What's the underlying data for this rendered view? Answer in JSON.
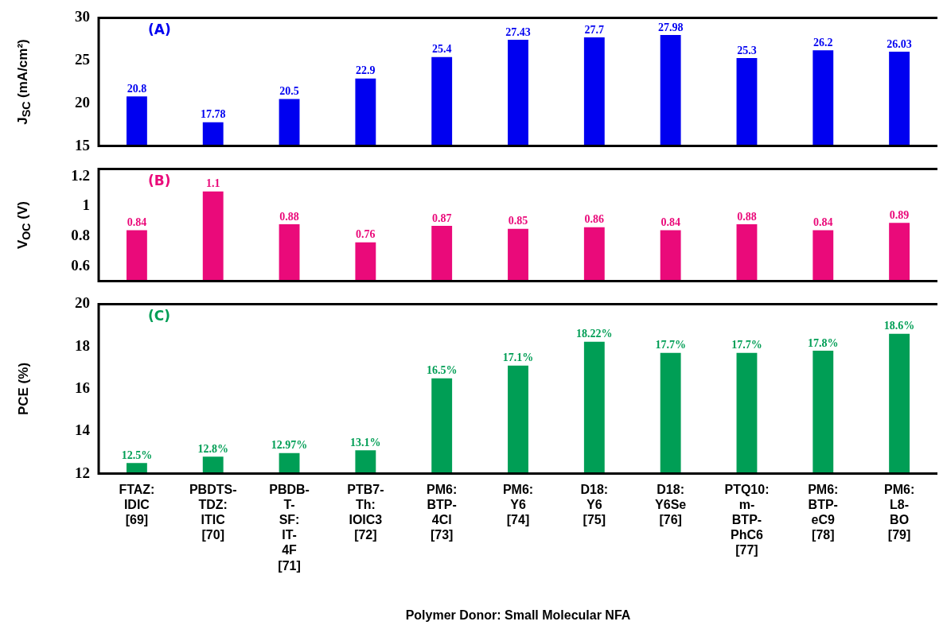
{
  "chart_data": [
    {
      "type": "bar",
      "ylabel": "J$_{SC}$  (mA/cm²)",
      "categories": [
        null,
        null,
        null,
        null,
        null,
        null,
        null,
        null,
        null,
        null,
        null
      ],
      "values": [
        20.8,
        17.78,
        20.5,
        22.9,
        25.4,
        27.43,
        27.7,
        27.98,
        25.3,
        26.2,
        26.03
      ],
      "color": "#0000f0",
      "ylim": [
        15,
        30
      ],
      "yticks": [
        15,
        20,
        25,
        30
      ],
      "data_labels": true,
      "tick_labels": "y",
      "annotations": [
        "(A)"
      ]
    },
    {
      "type": "bar",
      "ylabel": "V$_{OC}$  (V)",
      "categories": [
        null,
        null,
        null,
        null,
        null,
        null,
        null,
        null,
        null,
        null,
        null
      ],
      "values": [
        0.84,
        1.1,
        0.88,
        0.76,
        0.87,
        0.85,
        0.86,
        0.84,
        0.88,
        0.84,
        0.89
      ],
      "color": "#ea0a7a",
      "ylim": [
        0.5,
        1.25
      ],
      "yticks": [
        0.6,
        0.8,
        1,
        1.2
      ],
      "data_labels": true,
      "tick_labels": "y",
      "annotations": [
        "(B)"
      ]
    },
    {
      "type": "bar",
      "ylabel": "PCE (%)",
      "xlabel": "Polymer Donor: Small Molecular NFA",
      "categories": [
        "FTAZ: IDIC [69]",
        "PBDTS-TDZ: ITIC [70]",
        "PBDB-T-SF: IT-4F [71]",
        "PTB7-Th: IOIC3 [72]",
        "PM6: BTP-4Cl [73]",
        "PM6: Y6 [74]",
        "D18: Y6 [75]",
        "D18: Y6Se [76]",
        "PTQ10: m-BTP-PhC6 [77]",
        "PM6: BTP-eC9 [78]",
        "PM6: L8-BO [79]"
      ],
      "values": [
        12.5,
        12.8,
        12.97,
        13.1,
        16.5,
        17.1,
        18.22,
        17.7,
        17.7,
        17.8,
        18.6
      ],
      "value_labels": [
        "12.5%",
        "12.8%",
        "12.97%",
        "13.1%",
        "16.5%",
        "17.1%",
        "18.22%",
        "17.7%",
        "17.7%",
        "17.8%",
        "18.6%"
      ],
      "color": "#009e55",
      "ylim": [
        12,
        20
      ],
      "yticks": [
        12,
        14,
        16,
        18,
        20
      ],
      "annotations": [
        "(C)"
      ]
    }
  ]
}
